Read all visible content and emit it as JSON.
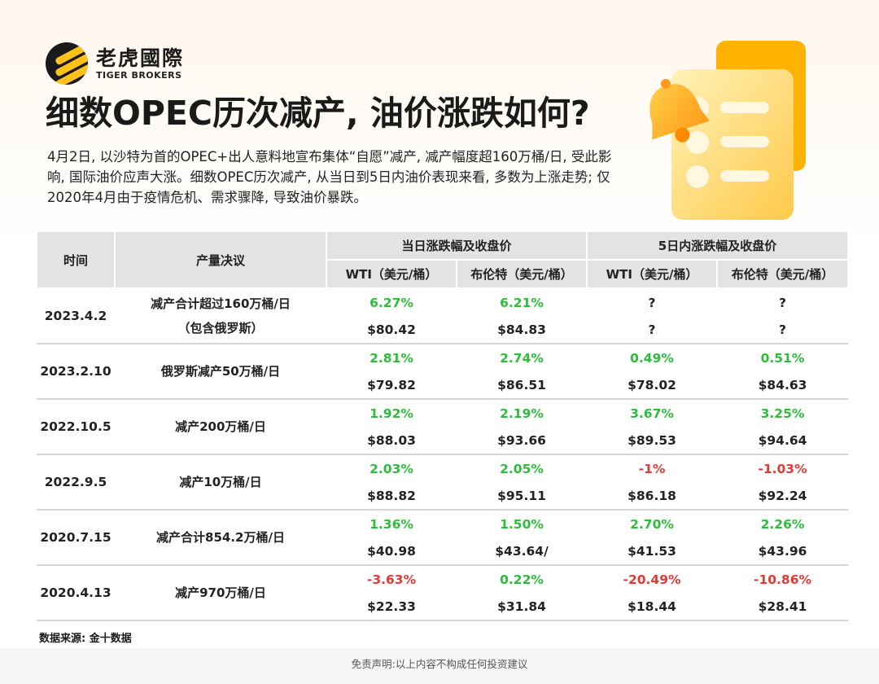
{
  "brand": {
    "name_cn": "老虎國際",
    "name_en": "TIGER BROKERS"
  },
  "title": "细数OPEC历次减产, 油价涨跌如何?",
  "intro": "4月2日, 以沙特为首的OPEC+出人意料地宣布集体“自愿”减产, 减产幅度超160万桶/日, 受此影响, 国际油价应声大涨。细数OPEC历次减产, 从当日到5日内油价表现来看, 多数为上涨走势; 仅2020年4月由于疫情危机、需求骤降, 导致油价暴跌。",
  "table": {
    "col_time": "时间",
    "col_resolution": "产量决议",
    "group_same_day": "当日涨跌幅及收盘价",
    "group_5day": "5日内涨跌幅及收盘价",
    "col_wti": "WTI（美元/桶）",
    "col_brent": "布伦特（美元/桶）",
    "col_wti_2": "WTI（美元/桶）",
    "col_brent_2": "布伦特（美元/桶）",
    "rows": [
      {
        "date": "2023.4.2",
        "resolution": "减产合计超过160万桶/日\n（包含俄罗斯）",
        "wti_pct": "6.27%",
        "brent_pct": "6.21%",
        "wti5_pct": "?",
        "brent5_pct": "?",
        "wti_close": "$80.42",
        "brent_close": "$84.83",
        "wti5_close": "?",
        "brent5_close": "?"
      },
      {
        "date": "2023.2.10",
        "resolution": "俄罗斯减产50万桶/日",
        "wti_pct": "2.81%",
        "brent_pct": "2.74%",
        "wti5_pct": "0.49%",
        "brent5_pct": "0.51%",
        "wti_close": "$79.82",
        "brent_close": "$86.51",
        "wti5_close": "$78.02",
        "brent5_close": "$84.63"
      },
      {
        "date": "2022.10.5",
        "resolution": "减产200万桶/日",
        "wti_pct": "1.92%",
        "brent_pct": "2.19%",
        "wti5_pct": "3.67%",
        "brent5_pct": "3.25%",
        "wti_close": "$88.03",
        "brent_close": "$93.66",
        "wti5_close": "$89.53",
        "brent5_close": "$94.64"
      },
      {
        "date": "2022.9.5",
        "resolution": "减产10万桶/日",
        "wti_pct": "2.03%",
        "brent_pct": "2.05%",
        "wti5_pct": "-1%",
        "brent5_pct": "-1.03%",
        "wti_close": "$88.82",
        "brent_close": "$95.11",
        "wti5_close": "$86.18",
        "brent5_close": "$92.24"
      },
      {
        "date": "2020.7.15",
        "resolution": "减产合计854.2万桶/日",
        "wti_pct": "1.36%",
        "brent_pct": "1.50%",
        "wti5_pct": "2.70%",
        "brent5_pct": "2.26%",
        "wti_close": "$40.98",
        "brent_close": "$43.64/",
        "wti5_close": "$41.53",
        "brent5_close": "$43.96"
      },
      {
        "date": "2020.4.13",
        "resolution": "减产970万桶/日",
        "wti_pct": "-3.63%",
        "brent_pct": "0.22%",
        "wti5_pct": "-20.49%",
        "brent5_pct": "-10.86%",
        "wti_close": "$22.33",
        "brent_close": "$31.84",
        "wti5_close": "$18.44",
        "brent5_close": "$28.41"
      }
    ]
  },
  "source": "数据来源: 金十数据",
  "disclaimer": "免责声明:以上内容不构成任何投资建议",
  "colors": {
    "up": "#2ebd3a",
    "down": "#e53935",
    "header_bg": "#e3e3e3",
    "brand_yellow": "#ffc21a"
  },
  "icons": {
    "logo": "tiger-logo-icon",
    "illustration": "document-bell-icon"
  }
}
